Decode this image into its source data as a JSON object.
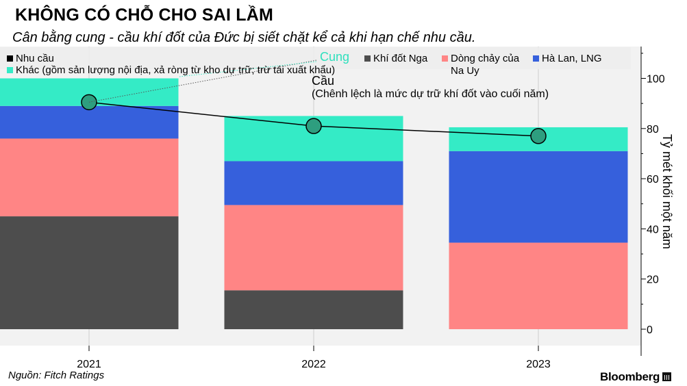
{
  "header": {
    "title": "KHÔNG CÓ CHỖ CHO SAI LẦM",
    "subtitle": "Cân bằng cung - cầu khí đốt của Đức bị siết chặt kể cả khi hạn chế nhu cầu."
  },
  "footer": {
    "source": "Nguồn: Fitch Ratings",
    "brand": "Bloomberg"
  },
  "chart_data": {
    "type": "bar",
    "stacked": true,
    "categories": [
      "2021",
      "2022",
      "2023"
    ],
    "series": [
      {
        "name": "Khí đốt Nga",
        "color": "#4d4d4d",
        "values": [
          45,
          15.5,
          0
        ]
      },
      {
        "name": "Dòng chảy của Na Uy",
        "color": "#ff8585",
        "values": [
          31,
          34,
          34.5
        ]
      },
      {
        "name": "Hà Lan, LNG",
        "color": "#3660dc",
        "values": [
          13,
          17.5,
          36.5
        ]
      },
      {
        "name": "Khác (gồm sản lượng nội địa, xả ròng từ kho dự trữ; trừ tái xuất khẩu)",
        "color": "#34ebc6",
        "values": [
          11,
          18,
          9.5
        ]
      }
    ],
    "line_series": {
      "name": "Nhu cầu",
      "color": "#000000",
      "values": [
        90.5,
        81,
        77
      ]
    },
    "ylabel": "Tỷ mét khối một năm",
    "ylim": [
      0,
      110
    ],
    "yticks": [
      0,
      20,
      40,
      60,
      80,
      100
    ],
    "annotations": {
      "supply_label": "Cung",
      "demand_label": "Cầu",
      "note": "(Chênh lệch là mức dự trữ khí đốt vào cuối năm)"
    },
    "legend_position": "top"
  }
}
